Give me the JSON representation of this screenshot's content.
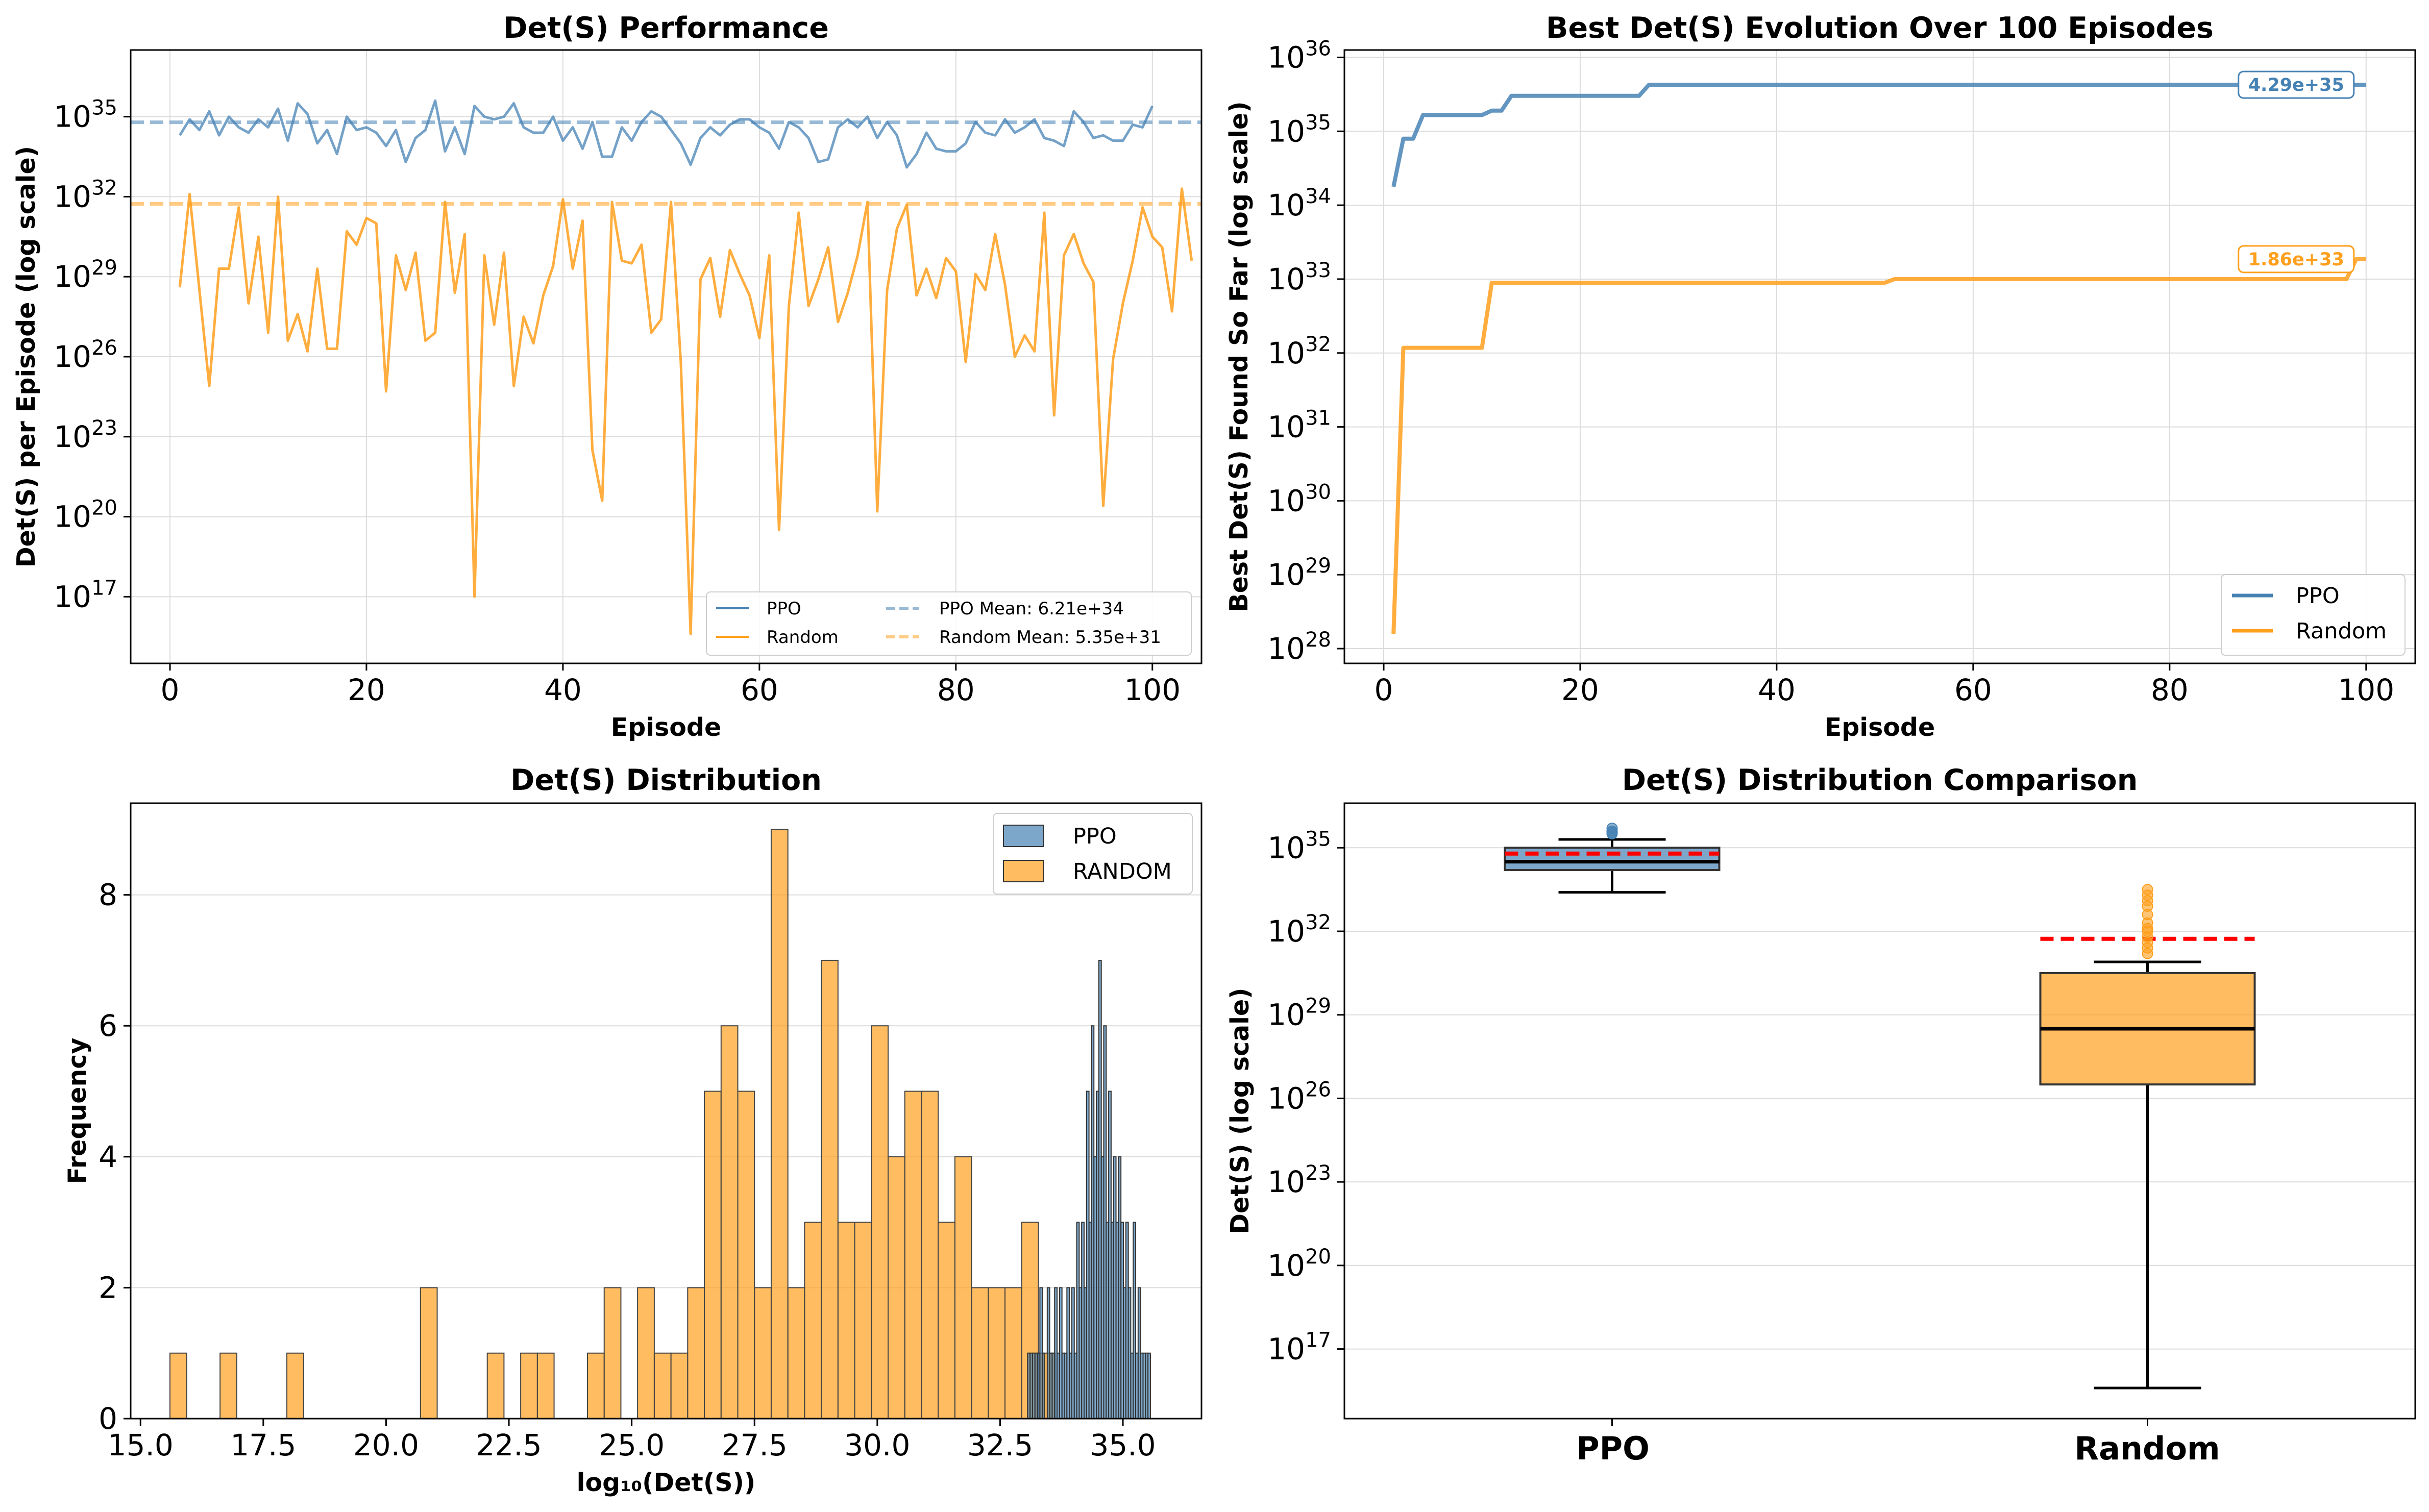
{
  "colors": {
    "ppo": "#4682b4",
    "random": "#ff9f1c",
    "median": "#000000",
    "mean_line": "#ff0000"
  },
  "chart_data": [
    {
      "type": "line",
      "title": "Det(S) Performance",
      "xlabel": "Episode",
      "ylabel": "Det(S) per Episode (log scale)",
      "yscale": "log",
      "xlim": [
        -4,
        105
      ],
      "ylim_log10": [
        14.5,
        37.5
      ],
      "xticks": [
        0,
        20,
        40,
        60,
        80,
        100
      ],
      "yticks_log10": [
        17,
        20,
        23,
        26,
        29,
        32,
        35
      ],
      "grid": true,
      "legend_position": "lower-right",
      "series": [
        {
          "name": "PPO",
          "x_start": 1,
          "x_step": 1,
          "values_log10": [
            34.3,
            34.9,
            34.5,
            35.2,
            34.3,
            35.0,
            34.6,
            34.4,
            34.9,
            34.6,
            35.3,
            34.1,
            35.5,
            35.1,
            34.0,
            34.5,
            33.6,
            35.0,
            34.5,
            34.6,
            34.4,
            33.9,
            34.5,
            33.3,
            34.2,
            34.5,
            35.6,
            33.7,
            34.6,
            33.6,
            35.4,
            35.0,
            34.9,
            35.0,
            35.5,
            34.6,
            34.4,
            34.4,
            35.0,
            34.1,
            34.6,
            33.8,
            34.8,
            33.5,
            33.5,
            34.6,
            34.1,
            34.8,
            35.2,
            35.0,
            34.5,
            34.0,
            33.2,
            34.2,
            34.6,
            34.3,
            34.7,
            34.9,
            34.9,
            34.6,
            34.4,
            33.8,
            34.8,
            34.6,
            34.2,
            33.3,
            33.4,
            34.6,
            34.9,
            34.6,
            35.0,
            34.2,
            34.8,
            34.3,
            33.1,
            33.6,
            34.4,
            33.8,
            33.7,
            33.7,
            34.0,
            34.8,
            34.4,
            34.3,
            34.9,
            34.4,
            34.6,
            34.9,
            34.2,
            34.1,
            33.9,
            35.2,
            34.8,
            34.2,
            34.3,
            34.1,
            34.1,
            34.7,
            34.6,
            35.4
          ]
        },
        {
          "name": "Random",
          "x_start": 1,
          "x_step": 1,
          "values_log10": [
            28.6,
            32.1,
            28.5,
            24.9,
            29.3,
            29.3,
            31.6,
            28.0,
            30.5,
            26.9,
            32.0,
            26.6,
            27.6,
            26.2,
            29.3,
            26.3,
            26.3,
            30.7,
            30.2,
            31.2,
            31.0,
            24.7,
            29.8,
            28.5,
            29.9,
            26.6,
            26.9,
            31.8,
            28.4,
            30.6,
            17.0,
            29.8,
            27.2,
            29.9,
            24.9,
            27.5,
            26.5,
            28.3,
            29.4,
            31.9,
            29.3,
            31.1,
            22.5,
            20.6,
            31.8,
            29.6,
            29.5,
            30.2,
            26.9,
            27.4,
            31.8,
            25.8,
            15.6,
            28.9,
            29.7,
            27.5,
            30.0,
            29.1,
            28.3,
            26.7,
            29.8,
            19.5,
            27.9,
            31.4,
            27.9,
            28.9,
            30.1,
            27.3,
            28.4,
            29.8,
            31.8,
            20.2,
            28.5,
            30.8,
            31.7,
            28.3,
            29.3,
            28.2,
            29.7,
            29.2,
            25.8,
            29.1,
            28.5,
            30.6,
            28.7,
            26.0,
            26.8,
            26.2,
            31.4,
            23.8,
            29.8,
            30.6,
            29.5,
            28.8,
            20.4,
            25.9,
            28.0,
            29.6,
            31.6,
            30.5,
            30.1,
            27.7,
            32.3,
            29.6
          ]
        }
      ],
      "reference_lines": [
        {
          "name": "PPO Mean",
          "label": "PPO Mean: 6.21e+34",
          "value_log10": 34.79
        },
        {
          "name": "Random Mean",
          "label": "Random Mean: 5.35e+31",
          "value_log10": 31.73
        }
      ]
    },
    {
      "type": "line",
      "title": "Best Det(S) Evolution Over 100 Episodes",
      "xlabel": "Episode",
      "ylabel": "Best Det(S) Found So Far (log scale)",
      "yscale": "log",
      "xlim": [
        -4,
        105
      ],
      "ylim_log10": [
        27.8,
        36.1
      ],
      "xticks": [
        0,
        20,
        40,
        60,
        80,
        100
      ],
      "yticks_log10": [
        28,
        29,
        30,
        31,
        32,
        33,
        34,
        35,
        36
      ],
      "grid": true,
      "legend_position": "lower-right",
      "series": [
        {
          "name": "PPO",
          "step_points": [
            [
              1,
              34.25
            ],
            [
              2,
              34.9
            ],
            [
              3,
              34.9
            ],
            [
              4,
              35.22
            ],
            [
              10,
              35.22
            ],
            [
              11,
              35.28
            ],
            [
              12,
              35.28
            ],
            [
              13,
              35.48
            ],
            [
              26,
              35.48
            ],
            [
              27,
              35.63
            ],
            [
              100,
              35.63
            ]
          ],
          "annotation": "4.29e+35"
        },
        {
          "name": "Random",
          "step_points": [
            [
              1,
              28.2
            ],
            [
              2,
              32.07
            ],
            [
              10,
              32.07
            ],
            [
              11,
              32.95
            ],
            [
              51,
              32.95
            ],
            [
              52,
              33.0
            ],
            [
              98,
              33.0
            ],
            [
              99,
              33.27
            ],
            [
              100,
              33.27
            ]
          ],
          "annotation": "1.86e+33"
        }
      ]
    },
    {
      "type": "histogram",
      "title": "Det(S) Distribution",
      "xlabel": "log₁₀(Det(S))",
      "ylabel": "Frequency",
      "xlim": [
        14.8,
        36.6
      ],
      "ylim": [
        0,
        9.4
      ],
      "xticks": [
        15.0,
        17.5,
        20.0,
        22.5,
        25.0,
        27.5,
        30.0,
        32.5,
        35.0
      ],
      "yticks": [
        0,
        2,
        4,
        6,
        8
      ],
      "legend_position": "top-right",
      "series": [
        {
          "name": "PPO",
          "bins": [
            [
              33.06,
              33.11,
              1
            ],
            [
              33.11,
              33.16,
              1
            ],
            [
              33.16,
              33.21,
              1
            ],
            [
              33.21,
              33.26,
              1
            ],
            [
              33.26,
              33.31,
              1
            ],
            [
              33.31,
              33.36,
              2
            ],
            [
              33.36,
              33.41,
              1
            ],
            [
              33.46,
              33.51,
              2
            ],
            [
              33.51,
              33.56,
              1
            ],
            [
              33.56,
              33.61,
              1
            ],
            [
              33.61,
              33.66,
              2
            ],
            [
              33.66,
              33.71,
              1
            ],
            [
              33.71,
              33.76,
              2
            ],
            [
              33.76,
              33.81,
              1
            ],
            [
              33.81,
              33.86,
              1
            ],
            [
              33.86,
              33.91,
              2
            ],
            [
              33.91,
              33.96,
              1
            ],
            [
              33.96,
              34.01,
              2
            ],
            [
              34.01,
              34.06,
              1
            ],
            [
              34.06,
              34.11,
              3
            ],
            [
              34.11,
              34.16,
              2
            ],
            [
              34.16,
              34.21,
              3
            ],
            [
              34.21,
              34.26,
              2
            ],
            [
              34.26,
              34.31,
              5
            ],
            [
              34.31,
              34.36,
              3
            ],
            [
              34.36,
              34.41,
              6
            ],
            [
              34.41,
              34.46,
              4
            ],
            [
              34.46,
              34.51,
              5
            ],
            [
              34.51,
              34.56,
              7
            ],
            [
              34.56,
              34.61,
              4
            ],
            [
              34.61,
              34.66,
              6
            ],
            [
              34.66,
              34.71,
              3
            ],
            [
              34.71,
              34.76,
              5
            ],
            [
              34.76,
              34.81,
              3
            ],
            [
              34.81,
              34.86,
              4
            ],
            [
              34.86,
              34.91,
              3
            ],
            [
              34.91,
              34.96,
              4
            ],
            [
              34.96,
              35.01,
              3
            ],
            [
              35.01,
              35.06,
              2
            ],
            [
              35.06,
              35.11,
              3
            ],
            [
              35.11,
              35.16,
              2
            ],
            [
              35.16,
              35.21,
              1
            ],
            [
              35.21,
              35.26,
              3
            ],
            [
              35.26,
              35.31,
              1
            ],
            [
              35.31,
              35.36,
              2
            ],
            [
              35.36,
              35.41,
              1
            ],
            [
              35.41,
              35.46,
              1
            ],
            [
              35.46,
              35.51,
              1
            ],
            [
              35.51,
              35.56,
              1
            ]
          ]
        },
        {
          "name": "RANDOM",
          "bin_start": 15.6,
          "bin_width": 0.34,
          "counts": [
            1,
            0,
            0,
            1,
            0,
            0,
            0,
            1,
            0,
            0,
            0,
            0,
            0,
            0,
            0,
            2,
            0,
            0,
            0,
            1,
            0,
            1,
            1,
            0,
            0,
            1,
            2,
            0,
            2,
            1,
            1,
            2,
            5,
            6,
            5,
            2,
            9,
            2,
            3,
            7,
            3,
            3,
            6,
            4,
            5,
            5,
            3,
            4,
            2,
            2,
            2,
            3,
            1
          ]
        }
      ]
    },
    {
      "type": "box",
      "title": "Det(S) Distribution Comparison",
      "ylabel": "Det(S) (log scale)",
      "yscale": "log",
      "ylim_log10": [
        14.5,
        36.6
      ],
      "yticks_log10": [
        17,
        20,
        23,
        26,
        29,
        32,
        35
      ],
      "categories": [
        "PPO",
        "Random"
      ],
      "boxes": [
        {
          "name": "PPO",
          "whisker_low_log10": 33.4,
          "q1_log10": 34.2,
          "median_log10": 34.5,
          "q3_log10": 35.0,
          "whisker_high_log10": 35.3,
          "mean_log10": 34.79,
          "outliers_log10": [
            35.5,
            35.6,
            35.7,
            35.55
          ]
        },
        {
          "name": "Random",
          "whisker_low_log10": 15.6,
          "q1_log10": 26.5,
          "median_log10": 28.5,
          "q3_log10": 30.5,
          "whisker_high_log10": 30.9,
          "mean_log10": 31.73,
          "outliers_log10": [
            31.2,
            31.4,
            31.6,
            31.8,
            32.0,
            32.1,
            32.3,
            32.6,
            32.9,
            33.3,
            33.5,
            33.1
          ]
        }
      ]
    }
  ]
}
